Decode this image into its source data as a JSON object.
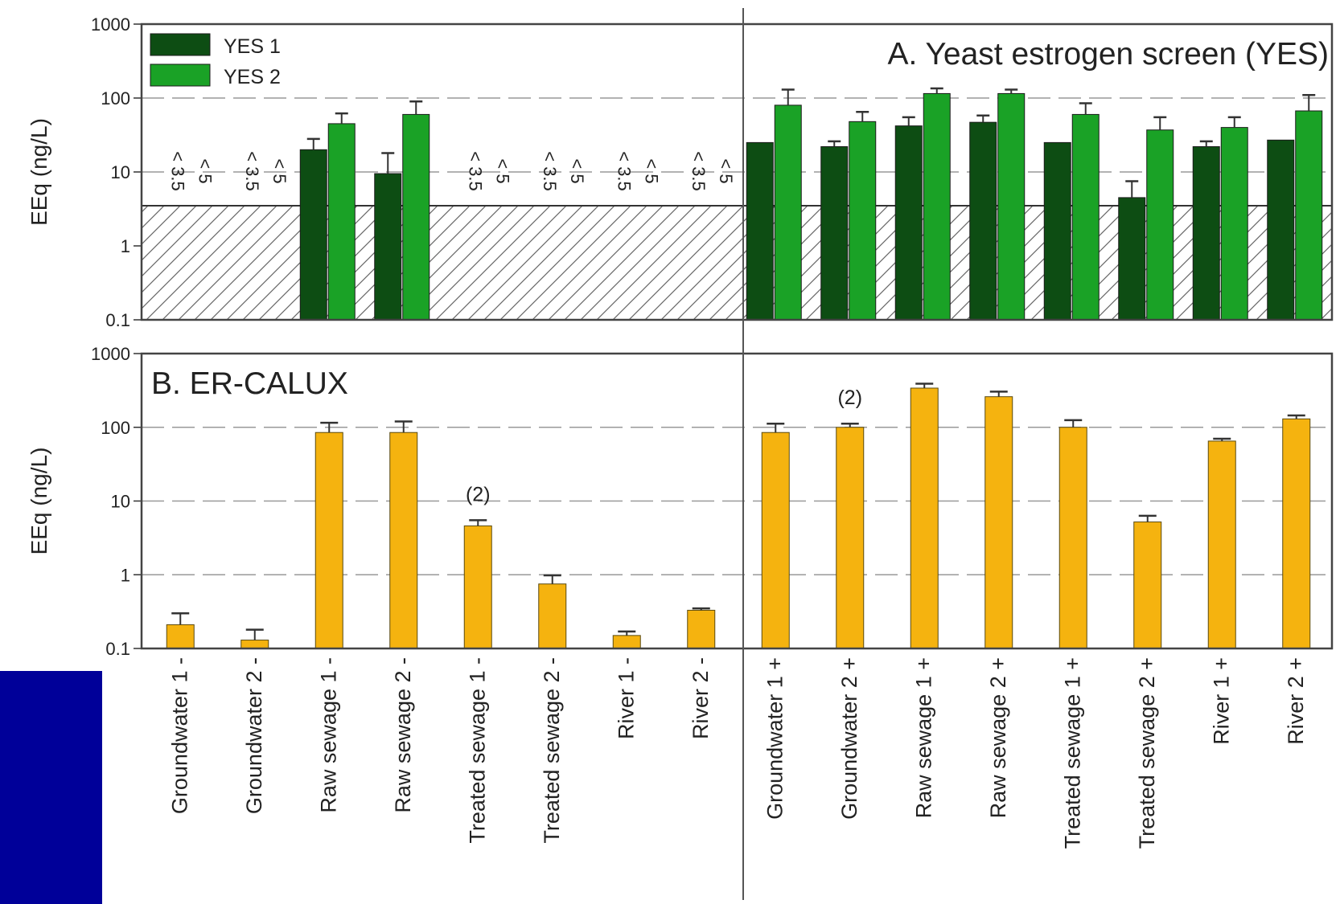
{
  "colors": {
    "yes1": "#0d4d13",
    "yes2": "#1aa226",
    "calux": "#f5b30f",
    "hatch": "#666666",
    "frame": "#444444",
    "corner_block": "#000099"
  },
  "chart_data": [
    {
      "type": "bar",
      "title": "A. Yeast estrogen screen (YES)",
      "ylabel": "EEq (ng/L)",
      "yscale": "log",
      "ylim": [
        0.1,
        1000
      ],
      "yticks": [
        "0.1",
        "1",
        "10",
        "100",
        "1000"
      ],
      "grid": "dashed horizontal at 10 and 100",
      "legend_position": "top-left",
      "categories": [
        "Groundwater 1 -",
        "Groundwater 2 -",
        "Raw sewage 1 -",
        "Raw sewage 2 -",
        "Treated sewage 1 -",
        "Treated sewage 2 -",
        "River 1 -",
        "River 2 -",
        "Groundwater 1 +",
        "Groundwater 2 +",
        "Raw sewage 1 +",
        "Raw sewage 2 +",
        "Treated sewage 1 +",
        "Treated sewage 2 +",
        "River 1 +",
        "River 2 +"
      ],
      "detection_limit": 3.5,
      "series": [
        {
          "name": "YES 1",
          "values": [
            null,
            null,
            20,
            9.5,
            null,
            null,
            null,
            null,
            25,
            22,
            42,
            47,
            25,
            4.5,
            22,
            27
          ],
          "errors": [
            null,
            null,
            28,
            18,
            null,
            null,
            null,
            null,
            null,
            26,
            55,
            58,
            null,
            7.5,
            26,
            null
          ]
        },
        {
          "name": "YES 2",
          "values": [
            null,
            null,
            45,
            60,
            null,
            null,
            null,
            null,
            80,
            48,
            115,
            115,
            60,
            37,
            40,
            67
          ],
          "errors": [
            null,
            null,
            62,
            90,
            null,
            null,
            null,
            null,
            130,
            65,
            135,
            130,
            85,
            55,
            55,
            110
          ]
        }
      ],
      "below_limit_labels": [
        {
          "category": 0,
          "labels": [
            "< 3.5",
            "< 5"
          ]
        },
        {
          "category": 1,
          "labels": [
            "< 3.5",
            "< 5"
          ]
        },
        {
          "category": 4,
          "labels": [
            "< 3.5",
            "< 5"
          ]
        },
        {
          "category": 5,
          "labels": [
            "< 3.5",
            "< 5"
          ]
        },
        {
          "category": 6,
          "labels": [
            "< 3.5",
            "< 5"
          ]
        },
        {
          "category": 7,
          "labels": [
            "< 3.5",
            "< 5"
          ]
        }
      ]
    },
    {
      "type": "bar",
      "title": "B. ER-CALUX",
      "ylabel": "EEq (ng/L)",
      "yscale": "log",
      "ylim": [
        0.1,
        1000
      ],
      "yticks": [
        "0.1",
        "1",
        "10",
        "100",
        "1000"
      ],
      "grid": "dashed horizontal at 1, 10 and 100",
      "categories": [
        "Groundwater 1 -",
        "Groundwater 2 -",
        "Raw sewage 1 -",
        "Raw sewage 2 -",
        "Treated sewage 1 -",
        "Treated sewage 2 -",
        "River 1 -",
        "River 2 -",
        "Groundwater 1 +",
        "Groundwater 2 +",
        "Raw sewage 1 +",
        "Raw sewage 2 +",
        "Treated sewage 1 +",
        "Treated sewage 2 +",
        "River 1 +",
        "River 2 +"
      ],
      "series": [
        {
          "values": [
            0.21,
            0.13,
            85,
            85,
            4.6,
            0.75,
            0.15,
            0.33,
            85,
            100,
            340,
            260,
            100,
            5.2,
            65,
            130
          ],
          "errors": [
            0.3,
            0.18,
            115,
            120,
            5.5,
            0.98,
            0.17,
            0.35,
            112,
            112,
            390,
            305,
            125,
            6.3,
            70,
            145
          ]
        }
      ],
      "annotations": [
        {
          "category": 4,
          "text": "(2)"
        },
        {
          "category": 9,
          "text": "(2)"
        }
      ]
    }
  ]
}
